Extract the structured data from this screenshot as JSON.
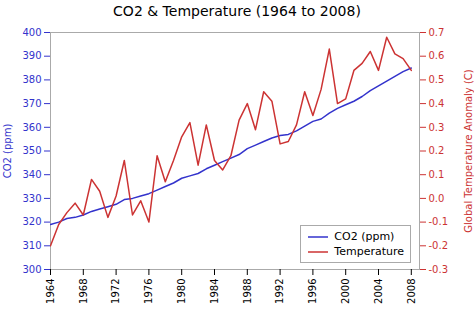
{
  "chart_data": {
    "type": "line",
    "title": "CO2 & Temperature (1964 to 2008)",
    "ylabel": "CO2 (ppm)",
    "y2label": "Global Temperature Anomaly (C)",
    "x": [
      1964,
      1965,
      1966,
      1967,
      1968,
      1969,
      1970,
      1971,
      1972,
      1973,
      1974,
      1975,
      1976,
      1977,
      1978,
      1979,
      1980,
      1981,
      1982,
      1983,
      1984,
      1985,
      1986,
      1987,
      1988,
      1989,
      1990,
      1991,
      1992,
      1993,
      1994,
      1995,
      1996,
      1997,
      1998,
      1999,
      2000,
      2001,
      2002,
      2003,
      2004,
      2005,
      2006,
      2007,
      2008
    ],
    "xlim": [
      1964,
      2009
    ],
    "xticks": [
      1964,
      1968,
      1972,
      1976,
      1980,
      1984,
      1988,
      1992,
      1996,
      2000,
      2004,
      2008
    ],
    "ylim": [
      300,
      400
    ],
    "yticks": [
      300,
      310,
      320,
      330,
      340,
      350,
      360,
      370,
      380,
      390,
      400
    ],
    "y2lim": [
      -0.3,
      0.7
    ],
    "y2ticks": [
      -0.3,
      -0.2,
      -0.1,
      {
        "value": 0.0,
        "label": "0.0"
      },
      0.1,
      0.2,
      0.3,
      0.4,
      0.5,
      0.6,
      0.7
    ],
    "grid": false,
    "legend": "lower right",
    "series": [
      {
        "name": "CO2 (ppm)",
        "color": "#3333cc",
        "values": [
          319.0,
          320.0,
          321.5,
          322.0,
          323.0,
          324.5,
          325.5,
          326.5,
          327.5,
          329.5,
          330.0,
          331.0,
          332.0,
          333.5,
          335.0,
          336.5,
          338.5,
          339.5,
          340.5,
          342.5,
          344.0,
          345.5,
          347.0,
          348.5,
          351.0,
          352.5,
          354.0,
          355.5,
          356.5,
          357.0,
          358.5,
          360.5,
          362.5,
          363.5,
          366.0,
          368.0,
          369.5,
          371.0,
          373.0,
          375.5,
          377.5,
          379.5,
          381.5,
          383.5,
          385.0
        ]
      },
      {
        "name": "Temperature",
        "color": "#cc3333",
        "axis": "y2",
        "values": [
          -0.2,
          -0.11,
          -0.06,
          -0.02,
          -0.07,
          0.08,
          0.03,
          -0.08,
          0.01,
          0.16,
          -0.07,
          -0.01,
          -0.1,
          0.18,
          0.07,
          0.16,
          0.26,
          0.32,
          0.14,
          0.31,
          0.16,
          0.12,
          0.18,
          0.33,
          0.4,
          0.29,
          0.45,
          0.41,
          0.23,
          0.24,
          0.31,
          0.45,
          0.35,
          0.46,
          0.63,
          0.4,
          0.42,
          0.54,
          0.57,
          0.62,
          0.54,
          0.68,
          0.61,
          0.59,
          0.54
        ]
      }
    ]
  }
}
